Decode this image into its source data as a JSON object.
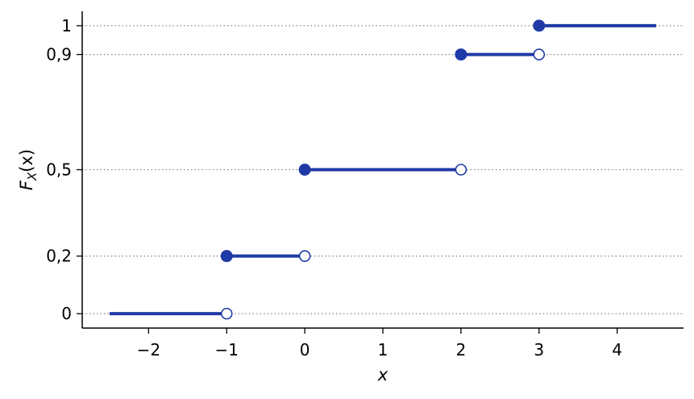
{
  "chart_data": {
    "type": "line",
    "title": "",
    "xlabel": "x",
    "ylabel_main": "F",
    "ylabel_sub": "X",
    "ylabel_rest": "(x)",
    "xlim": [
      -2.85,
      4.85
    ],
    "ylim": [
      -0.05,
      1.05
    ],
    "x_ticks": [
      -2,
      -1,
      0,
      1,
      2,
      3,
      4
    ],
    "x_tick_labels": [
      "−2",
      "−1",
      "0",
      "1",
      "2",
      "3",
      "4"
    ],
    "y_ticks": [
      0,
      0.2,
      0.5,
      0.9,
      1
    ],
    "y_tick_labels": [
      "0",
      "0,2",
      "0,5",
      "0,9",
      "1"
    ],
    "grid": "horizontal dotted at y ticks",
    "colors": {
      "line": "#1f3aa6",
      "grid": "#888888",
      "axis": "#000000"
    },
    "segments": [
      {
        "x_start": -2.5,
        "x_end": -1,
        "y": 0,
        "start_closed": false,
        "end_open": true
      },
      {
        "x_start": -1,
        "x_end": 0,
        "y": 0.2,
        "start_closed": true,
        "end_open": true
      },
      {
        "x_start": 0,
        "x_end": 2,
        "y": 0.5,
        "start_closed": true,
        "end_open": true
      },
      {
        "x_start": 2,
        "x_end": 3,
        "y": 0.9,
        "start_closed": true,
        "end_open": true
      },
      {
        "x_start": 3,
        "x_end": 4.5,
        "y": 1,
        "start_closed": true,
        "end_open": false
      }
    ]
  }
}
